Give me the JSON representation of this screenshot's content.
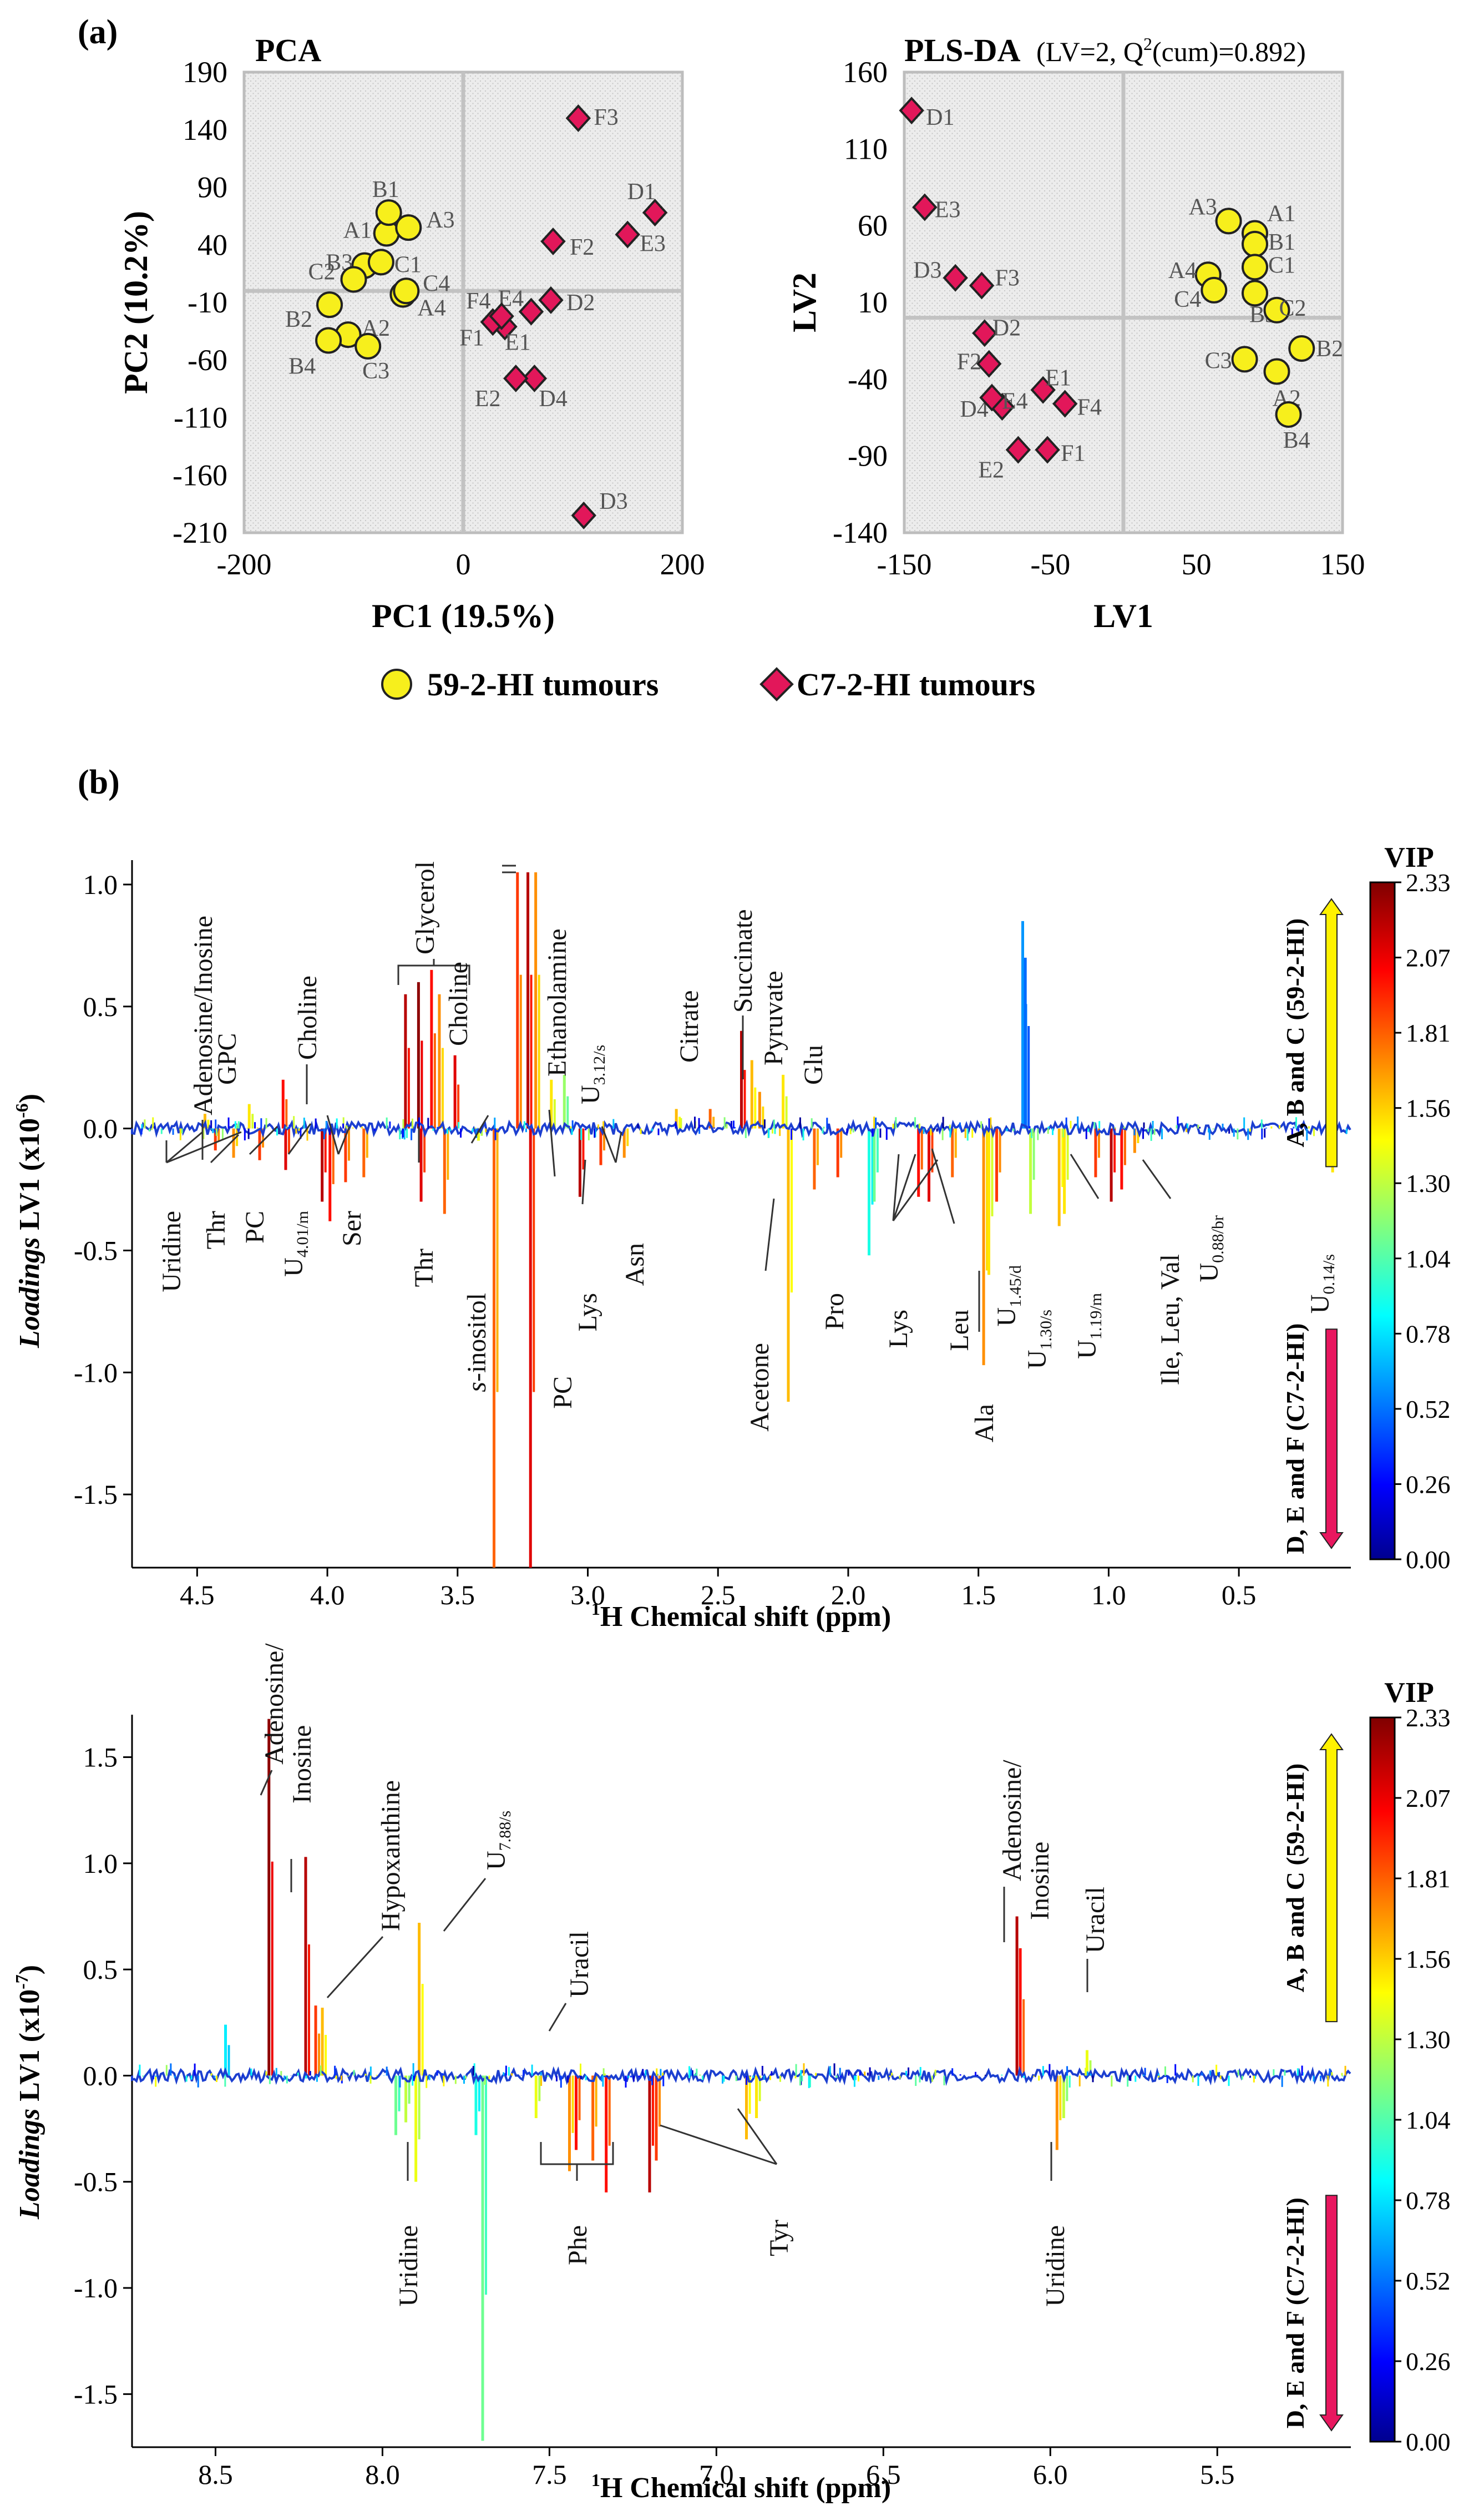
{
  "figure": {
    "panel_a": "(a)",
    "panel_b": "(b)",
    "legend": [
      {
        "label": "59-2-HI tumours",
        "marker": "circle",
        "color": "#f7ef1c"
      },
      {
        "label": "C7-2-HI tumours",
        "marker": "diamond",
        "color": "#e2175a"
      }
    ],
    "colorbar": {
      "title": "VIP",
      "ticks": [
        "2.33",
        "2.07",
        "1.81",
        "1.56",
        "1.30",
        "1.04",
        "0.78",
        "0.52",
        "0.26",
        "0.00"
      ],
      "up_label": "A, B and C (59-2-HI)",
      "down_label": "D, E and F (C7-2-HI)"
    }
  },
  "chart_data": [
    {
      "type": "scatter",
      "title": "PCA",
      "xlabel": "PC1 (19.5%)",
      "ylabel": "PC2 (10.2%)",
      "xlim": [
        -200,
        200
      ],
      "ylim": [
        -210,
        190
      ],
      "xticks": [
        -200,
        0,
        200
      ],
      "yticks": [
        190,
        140,
        90,
        40,
        -10,
        -60,
        -110,
        -160,
        -210
      ],
      "series": [
        {
          "name": "59-2-HI tumours",
          "marker": "circle",
          "points": [
            {
              "label": "A1",
              "x": -70,
              "y": 50
            },
            {
              "label": "A2",
              "x": -105,
              "y": -38
            },
            {
              "label": "A3",
              "x": -50,
              "y": 55
            },
            {
              "label": "A4",
              "x": -55,
              "y": -3
            },
            {
              "label": "B1",
              "x": -68,
              "y": 68
            },
            {
              "label": "B2",
              "x": -122,
              "y": -12
            },
            {
              "label": "B3",
              "x": -90,
              "y": 22
            },
            {
              "label": "B4",
              "x": -123,
              "y": -43
            },
            {
              "label": "C1",
              "x": -75,
              "y": 25
            },
            {
              "label": "C2",
              "x": -100,
              "y": 10
            },
            {
              "label": "C3",
              "x": -87,
              "y": -48
            },
            {
              "label": "C4",
              "x": -52,
              "y": 0
            }
          ]
        },
        {
          "name": "C7-2-HI tumours",
          "marker": "diamond",
          "points": [
            {
              "label": "D1",
              "x": 175,
              "y": 68
            },
            {
              "label": "D2",
              "x": 80,
              "y": -8
            },
            {
              "label": "D3",
              "x": 110,
              "y": -195
            },
            {
              "label": "D4",
              "x": 65,
              "y": -76
            },
            {
              "label": "E1",
              "x": 38,
              "y": -31
            },
            {
              "label": "E2",
              "x": 48,
              "y": -76
            },
            {
              "label": "E3",
              "x": 150,
              "y": 49
            },
            {
              "label": "E4",
              "x": 62,
              "y": -18
            },
            {
              "label": "F1",
              "x": 27,
              "y": -27
            },
            {
              "label": "F2",
              "x": 82,
              "y": 43
            },
            {
              "label": "F3",
              "x": 105,
              "y": 150
            },
            {
              "label": "F4",
              "x": 35,
              "y": -22
            }
          ]
        }
      ]
    },
    {
      "type": "scatter",
      "title": "PLS-DA",
      "subtitle": "(LV=2, Q",
      "subtitle_sup": "2",
      "subtitle_end": "(cum)=0.892)",
      "xlabel": "LV1",
      "ylabel": "LV2",
      "xlim": [
        -150,
        150
      ],
      "ylim": [
        -140,
        160
      ],
      "xticks": [
        -150,
        -50,
        50,
        150
      ],
      "yticks": [
        160,
        110,
        60,
        10,
        -40,
        -90,
        -140
      ],
      "series": [
        {
          "name": "59-2-HI tumours",
          "marker": "circle",
          "points": [
            {
              "label": "A1",
              "x": 90,
              "y": 55
            },
            {
              "label": "A2",
              "x": 105,
              "y": -35
            },
            {
              "label": "A3",
              "x": 72,
              "y": 63
            },
            {
              "label": "A4",
              "x": 58,
              "y": 28
            },
            {
              "label": "B1",
              "x": 90,
              "y": 48
            },
            {
              "label": "B2",
              "x": 122,
              "y": -20
            },
            {
              "label": "B3",
              "x": 90,
              "y": 16
            },
            {
              "label": "B4",
              "x": 113,
              "y": -63
            },
            {
              "label": "C1",
              "x": 90,
              "y": 33
            },
            {
              "label": "C2",
              "x": 105,
              "y": 5
            },
            {
              "label": "C3",
              "x": 83,
              "y": -27
            },
            {
              "label": "C4",
              "x": 62,
              "y": 18
            }
          ]
        },
        {
          "name": "C7-2-HI tumours",
          "marker": "diamond",
          "points": [
            {
              "label": "D1",
              "x": -145,
              "y": 135
            },
            {
              "label": "D2",
              "x": -95,
              "y": -10
            },
            {
              "label": "D3",
              "x": -115,
              "y": 26
            },
            {
              "label": "D4",
              "x": -83,
              "y": -58
            },
            {
              "label": "E1",
              "x": -55,
              "y": -47
            },
            {
              "label": "E2",
              "x": -72,
              "y": -86
            },
            {
              "label": "E3",
              "x": -136,
              "y": 72
            },
            {
              "label": "E4",
              "x": -90,
              "y": -52
            },
            {
              "label": "F1",
              "x": -52,
              "y": -86
            },
            {
              "label": "F2",
              "x": -92,
              "y": -30
            },
            {
              "label": "F3",
              "x": -97,
              "y": 21
            },
            {
              "label": "F4",
              "x": -40,
              "y": -56
            }
          ]
        }
      ]
    },
    {
      "type": "line",
      "xlabel_sup": "1",
      "xlabel": "H Chemical shift (ppm)",
      "ylabel_bold": "Loadings",
      "ylabel_rest": " LV1 (x10",
      "ylabel_sup": "-6",
      "ylabel_end": ")",
      "xlim": [
        4.75,
        0.07
      ],
      "ylim": [
        -1.8,
        1.1
      ],
      "xticks": [
        4.5,
        4.0,
        3.5,
        3.0,
        2.5,
        2.0,
        1.5,
        1.0,
        0.5
      ],
      "yticks": [
        1.0,
        0.5,
        0.0,
        -0.5,
        -1.0,
        -1.5
      ],
      "peaks": [
        {
          "x": 4.47,
          "y": 0.06,
          "vip": 1.6
        },
        {
          "x": 4.43,
          "y": -0.09,
          "vip": 1.9
        },
        {
          "x": 4.36,
          "y": -0.12,
          "vip": 1.7
        },
        {
          "x": 4.3,
          "y": 0.1,
          "vip": 1.5
        },
        {
          "x": 4.26,
          "y": -0.13,
          "vip": 1.9
        },
        {
          "x": 4.17,
          "y": 0.2,
          "vip": 2.0
        },
        {
          "x": 4.16,
          "y": -0.17,
          "vip": 2.1
        },
        {
          "x": 4.02,
          "y": -0.3,
          "vip": 2.2
        },
        {
          "x": 3.99,
          "y": -0.38,
          "vip": 2.0
        },
        {
          "x": 3.93,
          "y": -0.22,
          "vip": 1.9
        },
        {
          "x": 3.86,
          "y": -0.2,
          "vip": 1.8
        },
        {
          "x": 3.7,
          "y": 0.55,
          "vip": 2.2
        },
        {
          "x": 3.65,
          "y": 0.6,
          "vip": 2.3
        },
        {
          "x": 3.6,
          "y": 0.65,
          "vip": 2.0
        },
        {
          "x": 3.57,
          "y": 0.55,
          "vip": 1.7
        },
        {
          "x": 3.64,
          "y": -0.3,
          "vip": 2.1
        },
        {
          "x": 3.55,
          "y": -0.35,
          "vip": 1.8
        },
        {
          "x": 3.51,
          "y": 0.3,
          "vip": 2.1
        },
        {
          "x": 3.42,
          "y": -0.05,
          "vip": 1.4
        },
        {
          "x": 3.36,
          "y": -1.8,
          "vip": 1.8
        },
        {
          "x": 3.27,
          "y": 1.05,
          "vip": 1.9
        },
        {
          "x": 3.23,
          "y": 1.05,
          "vip": 2.2
        },
        {
          "x": 3.22,
          "y": -1.8,
          "vip": 2.1
        },
        {
          "x": 3.2,
          "y": 1.05,
          "vip": 1.7
        },
        {
          "x": 3.14,
          "y": 0.2,
          "vip": 1.5
        },
        {
          "x": 3.09,
          "y": 0.22,
          "vip": 1.2
        },
        {
          "x": 3.03,
          "y": -0.28,
          "vip": 2.2
        },
        {
          "x": 2.95,
          "y": -0.15,
          "vip": 1.9
        },
        {
          "x": 2.86,
          "y": -0.12,
          "vip": 1.7
        },
        {
          "x": 2.66,
          "y": 0.08,
          "vip": 1.6
        },
        {
          "x": 2.53,
          "y": 0.08,
          "vip": 1.8
        },
        {
          "x": 2.41,
          "y": 0.4,
          "vip": 2.2
        },
        {
          "x": 2.37,
          "y": 0.28,
          "vip": 1.6
        },
        {
          "x": 2.34,
          "y": 0.15,
          "vip": 1.7
        },
        {
          "x": 2.25,
          "y": 0.22,
          "vip": 1.5
        },
        {
          "x": 2.23,
          "y": -1.12,
          "vip": 1.6
        },
        {
          "x": 2.13,
          "y": -0.25,
          "vip": 1.8
        },
        {
          "x": 2.04,
          "y": -0.2,
          "vip": 1.9
        },
        {
          "x": 1.92,
          "y": -0.52,
          "vip": 0.9
        },
        {
          "x": 1.9,
          "y": -0.3,
          "vip": 1.1
        },
        {
          "x": 1.73,
          "y": -0.28,
          "vip": 2.0
        },
        {
          "x": 1.69,
          "y": -0.3,
          "vip": 2.1
        },
        {
          "x": 1.6,
          "y": -0.2,
          "vip": 1.8
        },
        {
          "x": 1.48,
          "y": -0.97,
          "vip": 1.7
        },
        {
          "x": 1.46,
          "y": -0.6,
          "vip": 1.5
        },
        {
          "x": 1.43,
          "y": -0.3,
          "vip": 1.9
        },
        {
          "x": 1.33,
          "y": 0.85,
          "vip": 0.6
        },
        {
          "x": 1.32,
          "y": 0.7,
          "vip": 0.5
        },
        {
          "x": 1.3,
          "y": -0.35,
          "vip": 1.3
        },
        {
          "x": 1.19,
          "y": -0.4,
          "vip": 1.6
        },
        {
          "x": 1.17,
          "y": -0.35,
          "vip": 1.5
        },
        {
          "x": 1.05,
          "y": -0.2,
          "vip": 1.9
        },
        {
          "x": 0.99,
          "y": -0.3,
          "vip": 2.2
        },
        {
          "x": 0.95,
          "y": -0.25,
          "vip": 2.0
        },
        {
          "x": 0.9,
          "y": -0.1,
          "vip": 1.7
        },
        {
          "x": 0.14,
          "y": -0.18,
          "vip": 1.5
        }
      ],
      "annotations": [
        "Adenosine/Inosine",
        "GPC",
        "Choline",
        "Glycerol",
        "Choline",
        "Ethanolamine",
        "U3.12/s",
        "Citrate",
        "Succinate",
        "Pyruvate",
        "Glu",
        "Uridine",
        "Thr",
        "PC",
        "U4.01/m",
        "Ser",
        "Thr",
        "s-inositol",
        "PC",
        "Lys",
        "Asn",
        "Acetone",
        "Pro",
        "Lys",
        "Leu",
        "U1.45/d",
        "Ala",
        "U1.30/s",
        "U1.19/m",
        "Ile, Leu, Val",
        "U0.88/br",
        "U0.14/s"
      ]
    },
    {
      "type": "line",
      "xlabel_sup": "1",
      "xlabel": "H Chemical shift (ppm)",
      "ylabel_bold": "Loadings",
      "ylabel_rest": " LV1 (x10",
      "ylabel_sup": "-7",
      "ylabel_end": ")",
      "xlim": [
        8.75,
        5.1
      ],
      "ylim": [
        -1.75,
        1.7
      ],
      "xticks": [
        8.5,
        8.0,
        7.5,
        7.0,
        6.5,
        6.0,
        5.5
      ],
      "yticks": [
        1.5,
        1.0,
        0.5,
        0.0,
        -0.5,
        -1.0,
        -1.5
      ],
      "peaks": [
        {
          "x": 8.47,
          "y": 0.24,
          "vip": 0.8
        },
        {
          "x": 8.34,
          "y": 1.68,
          "vip": 2.3
        },
        {
          "x": 8.23,
          "y": 1.03,
          "vip": 2.2
        },
        {
          "x": 8.2,
          "y": 0.33,
          "vip": 1.9
        },
        {
          "x": 8.18,
          "y": 0.32,
          "vip": 1.6
        },
        {
          "x": 7.96,
          "y": -0.28,
          "vip": 1.1
        },
        {
          "x": 7.93,
          "y": -0.22,
          "vip": 1.3
        },
        {
          "x": 7.9,
          "y": -0.5,
          "vip": 1.4
        },
        {
          "x": 7.89,
          "y": 0.72,
          "vip": 1.6
        },
        {
          "x": 7.72,
          "y": -0.28,
          "vip": 0.9
        },
        {
          "x": 7.7,
          "y": -1.72,
          "vip": 1.1
        },
        {
          "x": 7.54,
          "y": -0.2,
          "vip": 1.4
        },
        {
          "x": 7.44,
          "y": -0.45,
          "vip": 1.7
        },
        {
          "x": 7.42,
          "y": -0.35,
          "vip": 2.0
        },
        {
          "x": 7.37,
          "y": -0.4,
          "vip": 1.8
        },
        {
          "x": 7.33,
          "y": -0.55,
          "vip": 2.0
        },
        {
          "x": 7.2,
          "y": -0.55,
          "vip": 2.2
        },
        {
          "x": 7.18,
          "y": -0.4,
          "vip": 1.9
        },
        {
          "x": 6.91,
          "y": -0.3,
          "vip": 1.6
        },
        {
          "x": 6.88,
          "y": -0.2,
          "vip": 1.5
        },
        {
          "x": 6.1,
          "y": 0.75,
          "vip": 2.2
        },
        {
          "x": 6.09,
          "y": 0.6,
          "vip": 2.0
        },
        {
          "x": 5.98,
          "y": -0.35,
          "vip": 1.7
        },
        {
          "x": 5.96,
          "y": -0.2,
          "vip": 1.3
        },
        {
          "x": 5.89,
          "y": 0.12,
          "vip": 1.4
        }
      ],
      "annotations": [
        "Adenosine/ Inosine",
        "Hypoxanthine",
        "U7.88/s",
        "Uracil",
        "Adenosine/ Inosine",
        "Uracil",
        "Uridine",
        "Phe",
        "Tyr",
        "Uridine"
      ]
    }
  ]
}
